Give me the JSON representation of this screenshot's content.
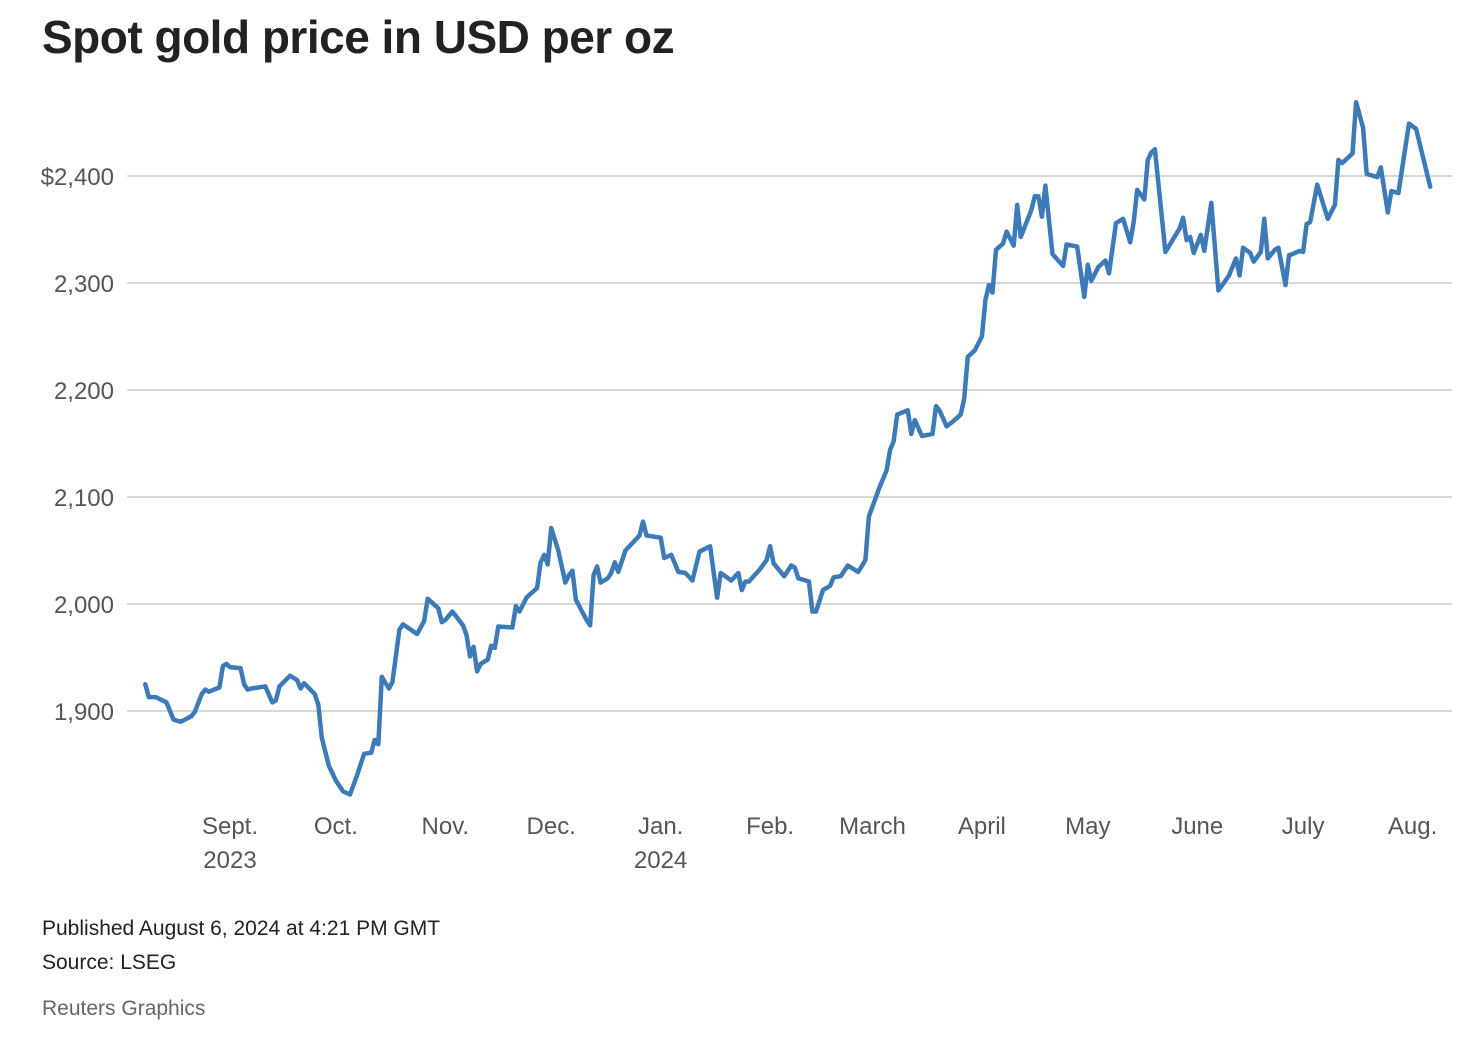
{
  "title": "Spot gold price in USD per oz",
  "footer": {
    "published": "Published August 6, 2024 at 4:21 PM GMT",
    "source": "Source: LSEG",
    "credit": "Reuters Graphics"
  },
  "colors": {
    "line": "#3d7ab8",
    "grid": "#cccccc",
    "text": "#555555"
  },
  "chart_data": {
    "type": "line",
    "title": "Spot gold price in USD per oz",
    "xlabel": "",
    "ylabel": "",
    "x_unit": "days since 2023-09-01",
    "ylim": [
      1810,
      2480
    ],
    "grid": true,
    "yticks": [
      {
        "value": 2400,
        "label": "$2,400"
      },
      {
        "value": 2300,
        "label": "2,300"
      },
      {
        "value": 2200,
        "label": "2,200"
      },
      {
        "value": 2100,
        "label": "2,100"
      },
      {
        "value": 2000,
        "label": "2,000"
      },
      {
        "value": 1900,
        "label": "1,900"
      }
    ],
    "xticks": [
      {
        "day": 0,
        "label": "Sept.",
        "year": "2023"
      },
      {
        "day": 30,
        "label": "Oct."
      },
      {
        "day": 61,
        "label": "Nov."
      },
      {
        "day": 91,
        "label": "Dec."
      },
      {
        "day": 122,
        "label": "Jan.",
        "year": "2024"
      },
      {
        "day": 153,
        "label": "Feb."
      },
      {
        "day": 182,
        "label": "March"
      },
      {
        "day": 213,
        "label": "April"
      },
      {
        "day": 243,
        "label": "May"
      },
      {
        "day": 274,
        "label": "June"
      },
      {
        "day": 304,
        "label": "July"
      },
      {
        "day": 335,
        "label": "Aug."
      }
    ],
    "series": [
      {
        "name": "Spot gold",
        "x": [
          -24,
          -23,
          -21,
          -18,
          -17,
          -16,
          -14,
          -11,
          -10,
          -8,
          -7,
          -6,
          -3,
          -2,
          -1,
          0,
          3,
          4,
          5,
          6,
          8,
          10,
          12,
          13,
          14,
          17,
          19,
          20,
          21,
          24,
          25,
          26,
          28,
          30,
          32,
          34,
          36,
          38,
          40,
          41,
          42,
          43,
          45,
          46,
          48,
          49,
          53,
          55,
          56,
          59,
          60,
          61,
          63,
          66,
          67,
          68,
          69,
          70,
          71,
          73,
          74,
          75,
          76,
          80,
          81,
          82,
          84,
          87,
          88,
          89,
          90,
          91,
          93,
          95,
          96,
          97,
          98,
          101,
          102,
          103,
          104,
          105,
          107,
          108,
          109,
          110,
          112,
          116,
          117,
          118,
          122,
          123,
          125,
          127,
          129,
          131,
          133,
          136,
          138,
          139,
          142,
          144,
          145,
          146,
          147,
          150,
          152,
          153,
          154,
          157,
          159,
          160,
          161,
          164,
          165,
          166,
          168,
          170,
          171,
          173,
          175,
          178,
          180,
          181,
          184,
          186,
          187,
          188,
          189,
          192,
          193,
          194,
          196,
          199,
          200,
          201,
          203,
          205,
          207,
          208,
          209,
          211,
          213,
          214,
          215,
          216,
          217,
          219,
          220,
          222,
          223,
          224,
          227,
          228,
          229,
          230,
          231,
          233,
          236,
          237,
          240,
          242,
          243,
          244,
          246,
          248,
          249,
          251,
          253,
          255,
          256,
          257,
          259,
          260,
          261,
          262,
          265,
          267,
          269,
          270,
          271,
          272,
          273,
          275,
          276,
          278,
          280,
          283,
          285,
          286,
          287,
          289,
          290,
          292,
          293,
          294,
          296,
          297,
          299,
          300,
          301,
          303,
          304,
          305,
          306,
          308,
          311,
          313,
          314,
          315,
          318,
          319,
          321,
          322,
          325,
          326,
          328,
          329,
          331,
          334,
          336,
          340
        ],
        "values": [
          1925,
          1913,
          1913,
          1908,
          1900,
          1892,
          1890,
          1895,
          1899,
          1916,
          1920,
          1918,
          1922,
          1942,
          1944,
          1941,
          1940,
          1925,
          1920,
          1921,
          1922,
          1923,
          1908,
          1910,
          1923,
          1933,
          1929,
          1921,
          1926,
          1916,
          1906,
          1875,
          1849,
          1835,
          1825,
          1822,
          1840,
          1860,
          1861,
          1873,
          1869,
          1932,
          1921,
          1927,
          1976,
          1981,
          1972,
          1984,
          2005,
          1996,
          1983,
          1985,
          1993,
          1980,
          1971,
          1951,
          1960,
          1937,
          1944,
          1948,
          1961,
          1959,
          1979,
          1978,
          1998,
          1993,
          2006,
          2015,
          2039,
          2046,
          2037,
          2071,
          2050,
          2020,
          2027,
          2031,
          2004,
          1985,
          1980,
          2027,
          2035,
          2020,
          2024,
          2029,
          2039,
          2030,
          2050,
          2064,
          2077,
          2064,
          2062,
          2043,
          2046,
          2030,
          2029,
          2022,
          2049,
          2054,
          2006,
          2029,
          2022,
          2029,
          2013,
          2021,
          2021,
          2032,
          2041,
          2054,
          2038,
          2026,
          2036,
          2034,
          2024,
          2021,
          1993,
          1993,
          2013,
          2017,
          2025,
          2026,
          2036,
          2030,
          2041,
          2082,
          2109,
          2125,
          2144,
          2152,
          2177,
          2181,
          2159,
          2172,
          2157,
          2159,
          2185,
          2181,
          2166,
          2171,
          2177,
          2192,
          2231,
          2237,
          2250,
          2284,
          2298,
          2291,
          2331,
          2337,
          2348,
          2335,
          2373,
          2343,
          2368,
          2381,
          2381,
          2362,
          2391,
          2327,
          2316,
          2336,
          2334,
          2287,
          2317,
          2302,
          2315,
          2321,
          2309,
          2356,
          2360,
          2338,
          2357,
          2387,
          2378,
          2415,
          2422,
          2425,
          2329,
          2340,
          2351,
          2361,
          2340,
          2343,
          2328,
          2345,
          2330,
          2375,
          2293,
          2307,
          2323,
          2307,
          2333,
          2328,
          2320,
          2329,
          2360,
          2323,
          2331,
          2333,
          2298,
          2326,
          2327,
          2330,
          2329,
          2355,
          2357,
          2392,
          2360,
          2373,
          2415,
          2412,
          2421,
          2469,
          2445,
          2402,
          2399,
          2408,
          2366,
          2386,
          2384,
          2449,
          2444,
          2390
        ]
      }
    ]
  }
}
